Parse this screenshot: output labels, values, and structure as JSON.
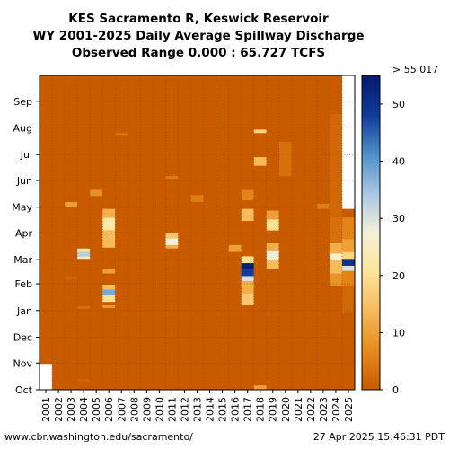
{
  "chart_data": {
    "type": "heatmap",
    "title_lines": [
      "KES Sacramento R, Keswick Reservoir",
      "WY 2001-2025 Daily Average Spillway Discharge",
      "Observed Range 0.000 : 65.727 TCFS"
    ],
    "x_categories": [
      "2001",
      "2002",
      "2003",
      "2004",
      "2005",
      "2006",
      "2007",
      "2008",
      "2009",
      "2010",
      "2011",
      "2012",
      "2013",
      "2014",
      "2015",
      "2016",
      "2017",
      "2018",
      "2019",
      "2020",
      "2021",
      "2022",
      "2023",
      "2024",
      "2025"
    ],
    "y_months": [
      "Oct",
      "Nov",
      "Dec",
      "Jan",
      "Feb",
      "Mar",
      "Apr",
      "May",
      "Jun",
      "Jul",
      "Aug",
      "Sep"
    ],
    "colorbar": {
      "min": 0,
      "max": 55.017,
      "ticks": [
        0,
        10,
        20,
        30,
        40,
        50
      ],
      "max_label": "> 55.017",
      "colors": [
        "#c85a00",
        "#e88a1c",
        "#f7b95a",
        "#fde49a",
        "#f4f1d8",
        "#a9c6e3",
        "#4c8fc8",
        "#0f3a9a",
        "#071a70"
      ]
    },
    "background_color": "#c85a00",
    "missing": [
      {
        "year": "2001",
        "from_day": 0,
        "to_day": 30
      },
      {
        "year": "2025",
        "from_day": 210,
        "to_day": 365
      }
    ],
    "events": [
      {
        "year": "2002",
        "from_day": 146,
        "to_day": 149,
        "value": 0
      },
      {
        "year": "2003",
        "from_day": 128,
        "to_day": 131,
        "value": 2
      },
      {
        "year": "2003",
        "from_day": 212,
        "to_day": 218,
        "value": 10
      },
      {
        "year": "2004",
        "from_day": 10,
        "to_day": 12,
        "value": 2
      },
      {
        "year": "2004",
        "from_day": 94,
        "to_day": 97,
        "value": 3
      },
      {
        "year": "2004",
        "from_day": 152,
        "to_day": 155,
        "value": 25
      },
      {
        "year": "2004",
        "from_day": 155,
        "to_day": 160,
        "value": 33
      },
      {
        "year": "2004",
        "from_day": 160,
        "to_day": 164,
        "value": 22
      },
      {
        "year": "2005",
        "from_day": 225,
        "to_day": 232,
        "value": 8
      },
      {
        "year": "2006",
        "from_day": 95,
        "to_day": 98,
        "value": 9
      },
      {
        "year": "2006",
        "from_day": 102,
        "to_day": 110,
        "value": 20
      },
      {
        "year": "2006",
        "from_day": 110,
        "to_day": 116,
        "value": 38
      },
      {
        "year": "2006",
        "from_day": 116,
        "to_day": 122,
        "value": 14
      },
      {
        "year": "2006",
        "from_day": 135,
        "to_day": 140,
        "value": 10
      },
      {
        "year": "2006",
        "from_day": 165,
        "to_day": 185,
        "value": 14
      },
      {
        "year": "2006",
        "from_day": 185,
        "to_day": 200,
        "value": 22
      },
      {
        "year": "2006",
        "from_day": 200,
        "to_day": 210,
        "value": 12
      },
      {
        "year": "2007",
        "from_day": 296,
        "to_day": 298,
        "value": 4
      },
      {
        "year": "2011",
        "from_day": 164,
        "to_day": 168,
        "value": 12
      },
      {
        "year": "2011",
        "from_day": 168,
        "to_day": 176,
        "value": 28
      },
      {
        "year": "2011",
        "from_day": 176,
        "to_day": 182,
        "value": 16
      },
      {
        "year": "2011",
        "from_day": 245,
        "to_day": 248,
        "value": 5
      },
      {
        "year": "2013",
        "from_day": 218,
        "to_day": 226,
        "value": 5
      },
      {
        "year": "2016",
        "from_day": 160,
        "to_day": 168,
        "value": 10
      },
      {
        "year": "2017",
        "from_day": 98,
        "to_day": 112,
        "value": 16
      },
      {
        "year": "2017",
        "from_day": 112,
        "to_day": 126,
        "value": 12
      },
      {
        "year": "2017",
        "from_day": 126,
        "to_day": 132,
        "value": 30
      },
      {
        "year": "2017",
        "from_day": 132,
        "to_day": 140,
        "value": 48
      },
      {
        "year": "2017",
        "from_day": 140,
        "to_day": 147,
        "value": 54
      },
      {
        "year": "2017",
        "from_day": 147,
        "to_day": 155,
        "value": 20
      },
      {
        "year": "2017",
        "from_day": 196,
        "to_day": 210,
        "value": 14
      },
      {
        "year": "2017",
        "from_day": 220,
        "to_day": 232,
        "value": 6
      },
      {
        "year": "2018",
        "from_day": 0,
        "to_day": 5,
        "value": 10
      },
      {
        "year": "2018",
        "from_day": 260,
        "to_day": 270,
        "value": 14
      },
      {
        "year": "2018",
        "from_day": 298,
        "to_day": 302,
        "value": 18
      },
      {
        "year": "2019",
        "from_day": 140,
        "to_day": 150,
        "value": 14
      },
      {
        "year": "2019",
        "from_day": 150,
        "to_day": 162,
        "value": 28
      },
      {
        "year": "2019",
        "from_day": 162,
        "to_day": 170,
        "value": 12
      },
      {
        "year": "2019",
        "from_day": 185,
        "to_day": 198,
        "value": 20
      },
      {
        "year": "2019",
        "from_day": 198,
        "to_day": 208,
        "value": 10
      },
      {
        "year": "2020",
        "from_day": 248,
        "to_day": 288,
        "value": 3
      },
      {
        "year": "2023",
        "from_day": 210,
        "to_day": 216,
        "value": 5
      },
      {
        "year": "2024",
        "from_day": 120,
        "to_day": 135,
        "value": 8
      },
      {
        "year": "2024",
        "from_day": 135,
        "to_day": 150,
        "value": 14
      },
      {
        "year": "2024",
        "from_day": 150,
        "to_day": 158,
        "value": 26
      },
      {
        "year": "2024",
        "from_day": 158,
        "to_day": 170,
        "value": 12
      },
      {
        "year": "2024",
        "from_day": 170,
        "to_day": 200,
        "value": 3
      },
      {
        "year": "2024",
        "from_day": 200,
        "to_day": 215,
        "value": 2
      },
      {
        "year": "2024",
        "from_day": 215,
        "to_day": 260,
        "value": 2
      },
      {
        "year": "2024",
        "from_day": 260,
        "to_day": 320,
        "value": 2
      },
      {
        "year": "2025",
        "from_day": 90,
        "to_day": 120,
        "value": 2
      },
      {
        "year": "2025",
        "from_day": 120,
        "to_day": 138,
        "value": 6
      },
      {
        "year": "2025",
        "from_day": 138,
        "to_day": 144,
        "value": 30
      },
      {
        "year": "2025",
        "from_day": 144,
        "to_day": 152,
        "value": 50
      },
      {
        "year": "2025",
        "from_day": 152,
        "to_day": 160,
        "value": 18
      },
      {
        "year": "2025",
        "from_day": 160,
        "to_day": 175,
        "value": 10
      },
      {
        "year": "2025",
        "from_day": 175,
        "to_day": 200,
        "value": 6
      }
    ]
  },
  "footer": {
    "url": "www.cbr.washington.edu/sacramento/",
    "timestamp": "27 Apr 2025 15:46:31 PDT"
  }
}
